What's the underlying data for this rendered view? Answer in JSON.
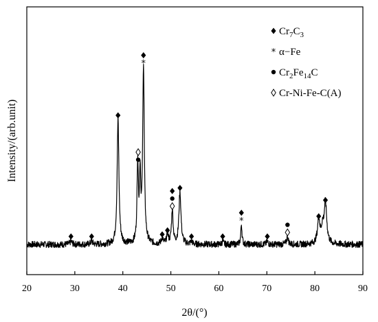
{
  "chart_data": {
    "type": "line",
    "xlabel": "2θ/(°)",
    "ylabel": "Intensity/(arb.unit)",
    "xlim": [
      20,
      90
    ],
    "ylim": [
      0,
      100
    ],
    "x_ticks": [
      "20",
      "30",
      "40",
      "50",
      "60",
      "70",
      "80",
      "90"
    ],
    "grid": false,
    "legend_position": "top-right",
    "legend": [
      {
        "symbol": "◆",
        "marker": "diamond-filled",
        "base": "Cr",
        "sub1": "7",
        "mid": "C",
        "sub2": "3"
      },
      {
        "symbol": "*",
        "marker": "asterisk",
        "text": "α−Fe"
      },
      {
        "symbol": "●",
        "marker": "circle-filled",
        "base": "Cr",
        "sub1": "2",
        "mid": "Fe",
        "sub2": "14",
        "tail": "C"
      },
      {
        "symbol": "◊",
        "marker": "diamond-open",
        "text": "Cr-Ni-Fe-C(A)"
      }
    ],
    "baseline": 2,
    "peaks": [
      {
        "x": 29.2,
        "h": 1.5,
        "w": 0.25
      },
      {
        "x": 33.5,
        "h": 1.5,
        "w": 0.25
      },
      {
        "x": 39.0,
        "h": 62,
        "w": 0.22
      },
      {
        "x": 43.1,
        "h": 40,
        "w": 0.16
      },
      {
        "x": 43.6,
        "h": 32,
        "w": 0.16
      },
      {
        "x": 44.3,
        "h": 88,
        "w": 0.2
      },
      {
        "x": 48.2,
        "h": 3,
        "w": 0.2
      },
      {
        "x": 49.3,
        "h": 5,
        "w": 0.2
      },
      {
        "x": 50.3,
        "h": 17,
        "w": 0.2
      },
      {
        "x": 51.9,
        "h": 26,
        "w": 0.25
      },
      {
        "x": 54.3,
        "h": 1.5,
        "w": 0.2
      },
      {
        "x": 60.8,
        "h": 1.5,
        "w": 0.2
      },
      {
        "x": 64.7,
        "h": 10,
        "w": 0.15
      },
      {
        "x": 70.1,
        "h": 1.5,
        "w": 0.2
      },
      {
        "x": 74.3,
        "h": 4,
        "w": 0.2
      },
      {
        "x": 80.8,
        "h": 12,
        "w": 0.3
      },
      {
        "x": 81.6,
        "h": 7,
        "w": 0.3
      },
      {
        "x": 82.2,
        "h": 20,
        "w": 0.32
      }
    ],
    "annotations": [
      {
        "x": 29.2,
        "y": 6,
        "marks": [
          "diamond-filled"
        ]
      },
      {
        "x": 33.5,
        "y": 6,
        "marks": [
          "diamond-filled"
        ]
      },
      {
        "x": 39.0,
        "y": 66,
        "marks": [
          "diamond-filled"
        ]
      },
      {
        "x": 43.2,
        "y": 44,
        "marks": [
          "circle-filled",
          "diamond-open"
        ]
      },
      {
        "x": 44.3,
        "y": 92,
        "marks": [
          "asterisk",
          "diamond-filled"
        ]
      },
      {
        "x": 48.2,
        "y": 7,
        "marks": [
          "diamond-filled"
        ]
      },
      {
        "x": 49.3,
        "y": 9,
        "marks": [
          "diamond-filled"
        ]
      },
      {
        "x": 50.3,
        "y": 21,
        "marks": [
          "diamond-open",
          "circle-filled",
          "diamond-filled"
        ]
      },
      {
        "x": 51.9,
        "y": 30,
        "marks": [
          "diamond-filled"
        ]
      },
      {
        "x": 54.3,
        "y": 6,
        "marks": [
          "diamond-filled"
        ]
      },
      {
        "x": 60.8,
        "y": 6,
        "marks": [
          "diamond-filled"
        ]
      },
      {
        "x": 64.7,
        "y": 14,
        "marks": [
          "asterisk",
          "diamond-filled"
        ]
      },
      {
        "x": 70.1,
        "y": 6,
        "marks": [
          "diamond-filled"
        ]
      },
      {
        "x": 74.3,
        "y": 8,
        "marks": [
          "diamond-open",
          "circle-filled"
        ]
      },
      {
        "x": 80.8,
        "y": 16,
        "marks": [
          "diamond-filled"
        ]
      },
      {
        "x": 82.2,
        "y": 24,
        "marks": [
          "diamond-filled"
        ]
      }
    ]
  }
}
